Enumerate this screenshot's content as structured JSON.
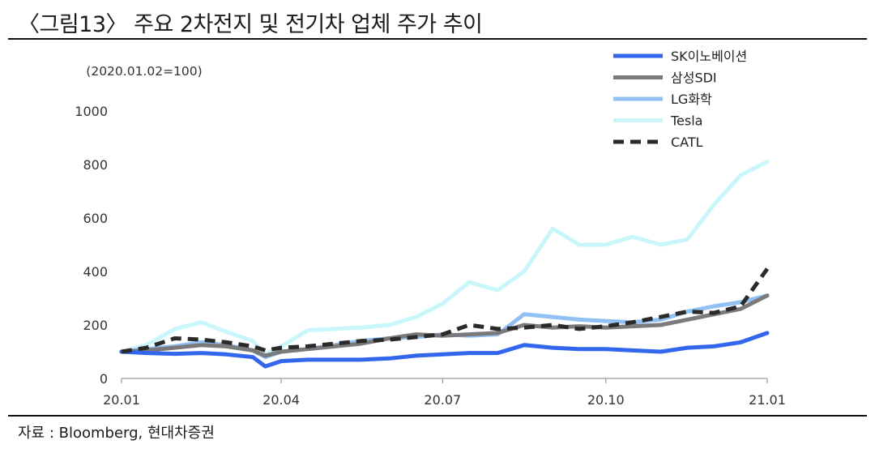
{
  "header": {
    "title": "〈그림13〉 주요 2차전지 및 전기차 업체 주가 추이"
  },
  "footer": {
    "source": "자료 : Bloomberg, 현대차증권"
  },
  "chart_data": {
    "type": "line",
    "unit_note": "(2020.01.02=100)",
    "xlabel": "",
    "ylabel": "",
    "x_ticks": [
      "20.01",
      "20.04",
      "20.07",
      "20.10",
      "21.01"
    ],
    "y_ticks": [
      "0",
      "200",
      "400",
      "600",
      "800",
      "1000"
    ],
    "ylim": [
      0,
      1000
    ],
    "xlim": [
      "2020-01-02",
      "2020-12-31"
    ],
    "grid": false,
    "legend_position": "top-right",
    "x": [
      "2020-01-02",
      "2020-01-16",
      "2020-02-01",
      "2020-02-16",
      "2020-03-01",
      "2020-03-16",
      "2020-03-23",
      "2020-04-01",
      "2020-04-16",
      "2020-05-01",
      "2020-05-16",
      "2020-06-01",
      "2020-06-16",
      "2020-07-01",
      "2020-07-16",
      "2020-08-01",
      "2020-08-16",
      "2020-09-01",
      "2020-09-16",
      "2020-10-01",
      "2020-10-16",
      "2020-11-01",
      "2020-11-16",
      "2020-12-01",
      "2020-12-16",
      "2020-12-31"
    ],
    "series": [
      {
        "name": "SK이노베이션",
        "color": "#3366ee",
        "dash": "solid",
        "width": 5,
        "values": [
          100,
          95,
          92,
          95,
          90,
          80,
          45,
          65,
          70,
          70,
          70,
          75,
          85,
          90,
          95,
          95,
          125,
          115,
          110,
          110,
          105,
          100,
          115,
          120,
          135,
          170
        ]
      },
      {
        "name": "삼성SDI",
        "color": "#7a7a7a",
        "dash": "solid",
        "width": 5,
        "values": [
          100,
          105,
          115,
          125,
          120,
          105,
          85,
          100,
          110,
          120,
          130,
          150,
          165,
          160,
          165,
          170,
          200,
          190,
          195,
          190,
          195,
          200,
          220,
          240,
          260,
          310
        ]
      },
      {
        "name": "LG화학",
        "color": "#90c0f4",
        "dash": "solid",
        "width": 5,
        "values": [
          100,
          110,
          120,
          135,
          125,
          105,
          80,
          100,
          110,
          125,
          140,
          150,
          155,
          165,
          160,
          165,
          240,
          230,
          220,
          215,
          210,
          220,
          250,
          270,
          285,
          310
        ]
      },
      {
        "name": "Tesla",
        "color": "#c8f6fb",
        "dash": "solid",
        "width": 5,
        "values": [
          100,
          125,
          185,
          210,
          175,
          140,
          90,
          120,
          180,
          185,
          190,
          200,
          230,
          280,
          360,
          330,
          400,
          560,
          500,
          500,
          530,
          500,
          520,
          650,
          760,
          810
        ]
      },
      {
        "name": "CATL",
        "color": "#2a2a2a",
        "dash": "dashed",
        "width": 5,
        "values": [
          100,
          115,
          150,
          145,
          135,
          120,
          105,
          115,
          120,
          130,
          140,
          145,
          155,
          165,
          200,
          185,
          190,
          200,
          185,
          195,
          210,
          230,
          250,
          245,
          270,
          410
        ]
      }
    ]
  }
}
